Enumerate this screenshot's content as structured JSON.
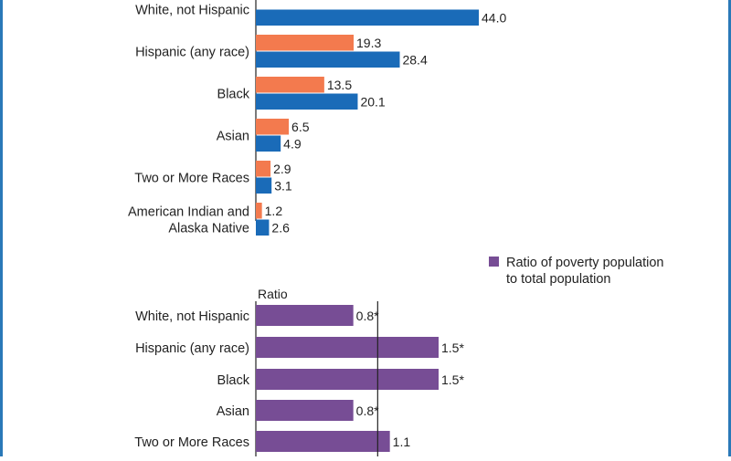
{
  "colors": {
    "poverty_share": "#f37a4e",
    "total_share": "#1a6bb8",
    "ratio": "#774d95",
    "frame": "#2a79b8",
    "axis": "#222222"
  },
  "chart_data": [
    {
      "type": "bar",
      "orientation": "horizontal",
      "categories": [
        "White, not Hispanic",
        "Hispanic (any race)",
        "Black",
        "Asian",
        "Two or More Races",
        "American Indian and Alaska Native"
      ],
      "category_lines": [
        [
          "White, not Hispanic"
        ],
        [
          "Hispanic (any race)"
        ],
        [
          "Black"
        ],
        [
          "Asian"
        ],
        [
          "Two or More Races"
        ],
        [
          "American Indian and",
          "Alaska Native"
        ]
      ],
      "series": [
        {
          "values": [
            null,
            19.3,
            13.5,
            6.5,
            2.9,
            1.2
          ],
          "color": "#f37a4e"
        },
        {
          "values": [
            44.0,
            28.4,
            20.1,
            4.9,
            3.1,
            2.6
          ],
          "color": "#1a6bb8"
        }
      ],
      "xlim": [
        0,
        52
      ]
    },
    {
      "type": "bar",
      "orientation": "horizontal",
      "axis_title": "Ratio",
      "categories": [
        "White, not Hispanic",
        "Hispanic (any race)",
        "Black",
        "Asian",
        "Two or More Races"
      ],
      "values": [
        0.8,
        1.5,
        1.5,
        0.8,
        1.1
      ],
      "value_labels": [
        "0.8*",
        "1.5*",
        "1.5*",
        "0.8*",
        "1.1"
      ],
      "reference_line": 1.0,
      "xlim": [
        0,
        1.5
      ],
      "legend": {
        "label_lines": [
          "Ratio of poverty population",
          "to total population"
        ],
        "position": "top-right"
      }
    }
  ]
}
